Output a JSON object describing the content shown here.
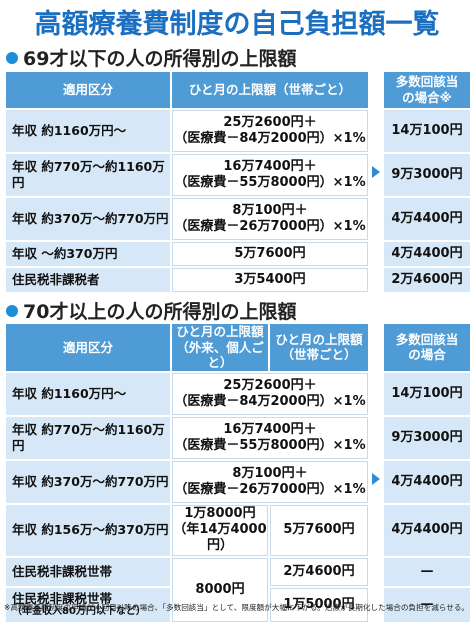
{
  "title": "高額療養費制度の自己負担額一覧",
  "sections": [
    {
      "heading": "69才以下の人の所得別の上限額",
      "header": [
        [
          "適用区分"
        ],
        [
          "ひと月の上限額（世帯ごと）"
        ],
        [
          "多数回該当",
          "の場合※"
        ]
      ],
      "rows": [
        [
          [
            "年収 約1160万円～"
          ],
          [
            "25万2600円＋",
            "（医療費－84万2000円）×1%"
          ],
          [
            "14万100円"
          ]
        ],
        [
          [
            "年収 約770万～約1160万円"
          ],
          [
            "16万7400円＋",
            "（医療費－55万8000円）×1%"
          ],
          [
            "9万3000円"
          ]
        ],
        [
          [
            "年収 約370万～約770万円"
          ],
          [
            "8万100円＋",
            "（医療費－26万7000円）×1%"
          ],
          [
            "4万4400円"
          ]
        ],
        [
          [
            "年収 ～約370万円"
          ],
          [
            "5万7600円"
          ],
          [
            "4万4400円"
          ]
        ],
        [
          [
            "住民税非課税者"
          ],
          [
            "3万5400円"
          ],
          [
            "2万4600円"
          ]
        ]
      ]
    },
    {
      "heading": "70才以上の人の所得別の上限額",
      "header": [
        [
          "適用区分"
        ],
        [
          "ひと月の上限額",
          "（外来、個人ごと）"
        ],
        [
          "ひと月の上限額",
          "（世帯ごと）"
        ],
        [
          "多数回該当",
          "の場合"
        ]
      ],
      "rows": [
        [
          [
            "年収 約1160万円～"
          ],
          [
            "25万2600円＋",
            "（医療費－84万2000円）×1%"
          ],
          [
            "14万100円"
          ]
        ],
        [
          [
            "年収 約770万～約1160万円"
          ],
          [
            "16万7400円＋",
            "（医療費－55万8000円）×1%"
          ],
          [
            "9万3000円"
          ]
        ],
        [
          [
            "年収 約370万～約770万円"
          ],
          [
            "8万100円＋",
            "（医療費－26万7000円）×1%"
          ],
          [
            "4万4400円"
          ]
        ],
        [
          [
            "年収 約156万～約370万円"
          ],
          [
            "1万8000円",
            "（年14万4000円）"
          ],
          [
            "5万7600円"
          ],
          [
            "4万4400円"
          ]
        ],
        [
          [
            "住民税非課税世帯"
          ],
          [
            "8000円"
          ],
          [
            "2万4600円"
          ],
          [
            "—"
          ]
        ],
        [
          [
            "住民税非課税世帯",
            "（年金収入80万円以下など）"
          ],
          [
            "1万5000円"
          ],
          [
            "—"
          ]
        ]
      ]
    }
  ],
  "footnote": "※高額療養費制度の申請が４回目以降の場合、「多数回該当」として、限度額が大幅に下がる。治療が長期化した場合の負担を減らせる。"
}
